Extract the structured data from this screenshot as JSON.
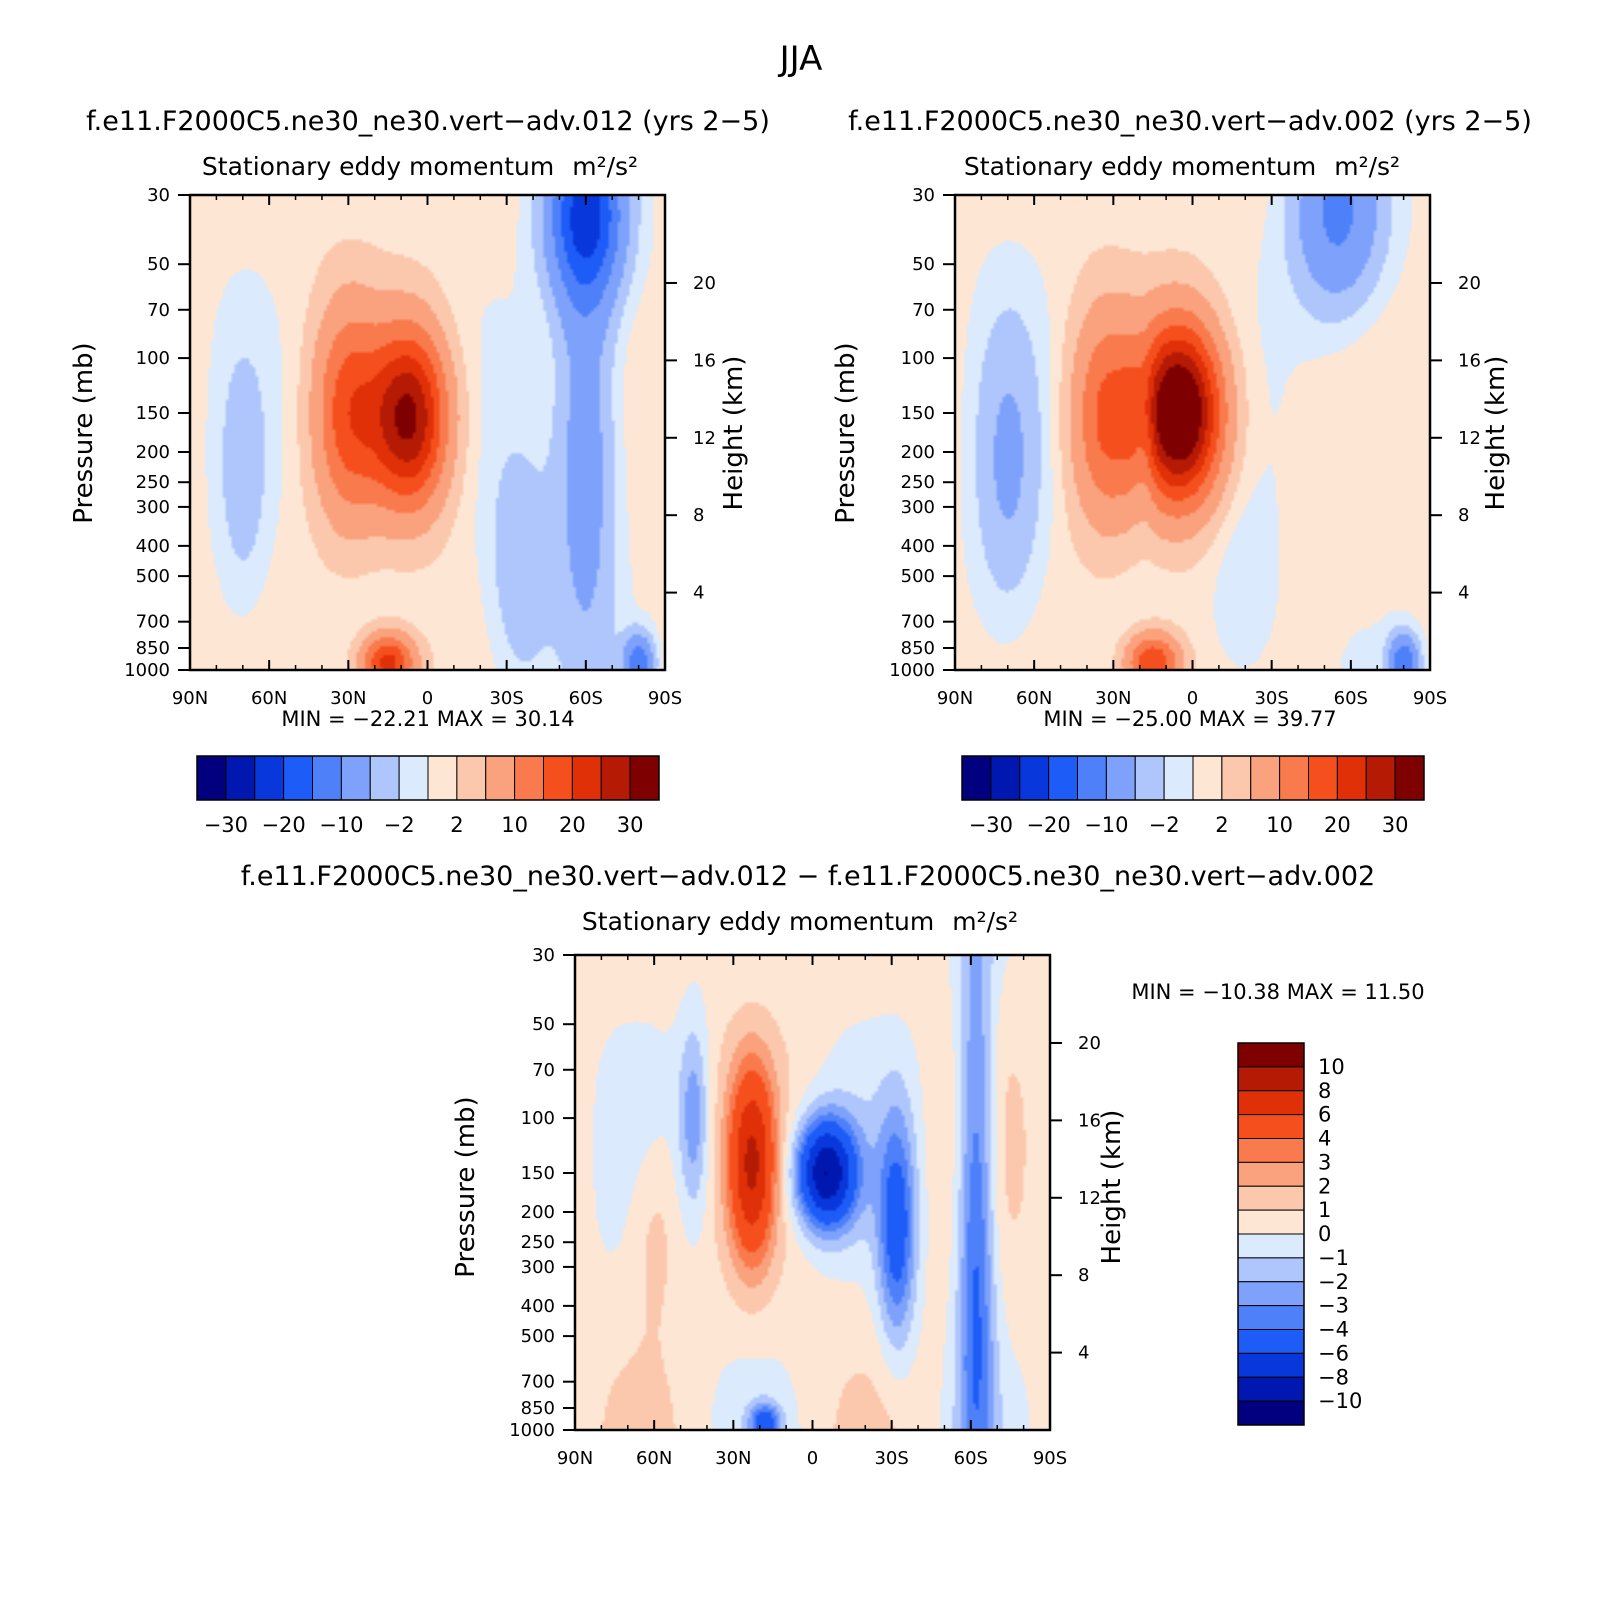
{
  "main_title": "JJA",
  "units_text": "m²/s²",
  "colors": {
    "full": [
      "#02007e",
      "#0018b0",
      "#0838dc",
      "#1e5cf8",
      "#4e80fa",
      "#7ea2fb",
      "#aec6fc",
      "#dbeafd",
      "#fde7d4",
      "#fcc8ad",
      "#f9a27d",
      "#f97a4c",
      "#f64f1e",
      "#df3008",
      "#b41a04",
      "#7e0000"
    ],
    "diff": [
      "#02007e",
      "#0018b0",
      "#0838dc",
      "#1e5cf8",
      "#4e80fa",
      "#7ea2fb",
      "#aec6fc",
      "#dbeafd",
      "#fde7d4",
      "#fcc8ad",
      "#f9a27d",
      "#f97a4c",
      "#f64f1e",
      "#df3008",
      "#b41a04",
      "#7e0000"
    ]
  },
  "chart_data": [
    {
      "id": "panel1",
      "type": "heatmap",
      "title": "f.e11.F2000C5.ne30_ne30.vert−adv.012 (yrs 2−5)",
      "subtitle_prefix": "Stationary eddy momentum",
      "xlabel": "",
      "ylabel": "Pressure (mb)",
      "y2label": "Height (km)",
      "x_ticks": [
        "90N",
        "60N",
        "30N",
        "0",
        "30S",
        "60S",
        "90S"
      ],
      "x_range": [
        90,
        -90
      ],
      "y_ticks": [
        30,
        50,
        70,
        100,
        150,
        200,
        250,
        300,
        400,
        500,
        700,
        850,
        1000
      ],
      "y_range": [
        30,
        1000
      ],
      "y2_ticks": [
        4,
        8,
        12,
        16,
        20
      ],
      "stats_text": "MIN = −22.21   MAX =   30.14",
      "min": -22.21,
      "max": 30.14,
      "colorbar_labels": [
        "−30",
        "−20",
        "−10",
        "−2",
        "2",
        "10",
        "20",
        "30"
      ],
      "blobs": [
        {
          "lat": 30,
          "p": 150,
          "sx": 9,
          "sy": 0.55,
          "a": 16
        },
        {
          "lat": 7,
          "p": 155,
          "sx": 10,
          "sy": 0.45,
          "a": 30
        },
        {
          "lat": -60,
          "p": 35,
          "sx": 10,
          "sy": 0.45,
          "a": -22
        },
        {
          "lat": -60,
          "p": 200,
          "sx": 8,
          "sy": 1.1,
          "a": -9
        },
        {
          "lat": -35,
          "p": 500,
          "sx": 9,
          "sy": 0.7,
          "a": -5
        },
        {
          "lat": 70,
          "p": 250,
          "sx": 7,
          "sy": 0.7,
          "a": -4
        },
        {
          "lat": 15,
          "p": 950,
          "sx": 7,
          "sy": 0.15,
          "a": 22
        },
        {
          "lat": -80,
          "p": 950,
          "sx": 4,
          "sy": 0.15,
          "a": -14
        }
      ]
    },
    {
      "id": "panel2",
      "type": "heatmap",
      "title": "f.e11.F2000C5.ne30_ne30.vert−adv.002 (yrs 2−5)",
      "subtitle_prefix": "Stationary eddy momentum",
      "xlabel": "",
      "ylabel": "Pressure (mb)",
      "y2label": "Height (km)",
      "x_ticks": [
        "90N",
        "60N",
        "30N",
        "0",
        "30S",
        "60S",
        "90S"
      ],
      "x_range": [
        90,
        -90
      ],
      "y_ticks": [
        30,
        50,
        70,
        100,
        150,
        200,
        250,
        300,
        400,
        500,
        700,
        850,
        1000
      ],
      "y_range": [
        30,
        1000
      ],
      "y2_ticks": [
        4,
        8,
        12,
        16,
        20
      ],
      "stats_text": "MIN = −25.00   MAX =   39.77",
      "min": -25.0,
      "max": 39.77,
      "colorbar_labels": [
        "−30",
        "−20",
        "−10",
        "−2",
        "2",
        "10",
        "20",
        "30"
      ],
      "blobs": [
        {
          "lat": 33,
          "p": 155,
          "sx": 9,
          "sy": 0.55,
          "a": 14
        },
        {
          "lat": 5,
          "p": 150,
          "sx": 11,
          "sy": 0.45,
          "a": 39
        },
        {
          "lat": 18,
          "p": 170,
          "sx": 3,
          "sy": 0.4,
          "a": -6
        },
        {
          "lat": -55,
          "p": 35,
          "sx": 12,
          "sy": 0.5,
          "a": -12
        },
        {
          "lat": 70,
          "p": 230,
          "sx": 9,
          "sy": 0.8,
          "a": -6
        },
        {
          "lat": -20,
          "p": 600,
          "sx": 9,
          "sy": 0.5,
          "a": -3
        },
        {
          "lat": 15,
          "p": 950,
          "sx": 7,
          "sy": 0.15,
          "a": 20
        },
        {
          "lat": -80,
          "p": 950,
          "sx": 4,
          "sy": 0.15,
          "a": -15
        }
      ]
    },
    {
      "id": "panel3",
      "type": "heatmap",
      "title": "f.e11.F2000C5.ne30_ne30.vert−adv.012 − f.e11.F2000C5.ne30_ne30.vert−adv.002",
      "subtitle_prefix": "Stationary eddy momentum",
      "xlabel": "",
      "ylabel": "Pressure (mb)",
      "y2label": "Height (km)",
      "x_ticks": [
        "90N",
        "60N",
        "30N",
        "0",
        "30S",
        "60S",
        "90S"
      ],
      "x_range": [
        90,
        -90
      ],
      "y_ticks": [
        30,
        50,
        70,
        100,
        150,
        200,
        250,
        300,
        400,
        500,
        700,
        850,
        1000
      ],
      "y_range": [
        30,
        1000
      ],
      "y2_ticks": [
        4,
        8,
        12,
        16,
        20
      ],
      "stats_text": "MIN = −10.38   MAX =   11.50",
      "min": -10.38,
      "max": 11.5,
      "colorbar_labels": [
        "10",
        "8",
        "6",
        "4",
        "3",
        "2",
        "1",
        "0",
        "−1",
        "−2",
        "−3",
        "−4",
        "−6",
        "−8",
        "−10"
      ],
      "blobs": [
        {
          "lat": 23,
          "p": 140,
          "sx": 6,
          "sy": 0.5,
          "a": 7
        },
        {
          "lat": -5,
          "p": 150,
          "sx": 8,
          "sy": 0.28,
          "a": -10
        },
        {
          "lat": -32,
          "p": 230,
          "sx": 5,
          "sy": 0.6,
          "a": -5
        },
        {
          "lat": -62,
          "p": 220,
          "sx": 5,
          "sy": 1.6,
          "a": -5
        },
        {
          "lat": 45,
          "p": 100,
          "sx": 4,
          "sy": 0.5,
          "a": -3
        },
        {
          "lat": 60,
          "p": 220,
          "sx": 7,
          "sy": 0.5,
          "a": 1.5
        },
        {
          "lat": 18,
          "p": 950,
          "sx": 4,
          "sy": 0.1,
          "a": -5
        }
      ]
    }
  ]
}
